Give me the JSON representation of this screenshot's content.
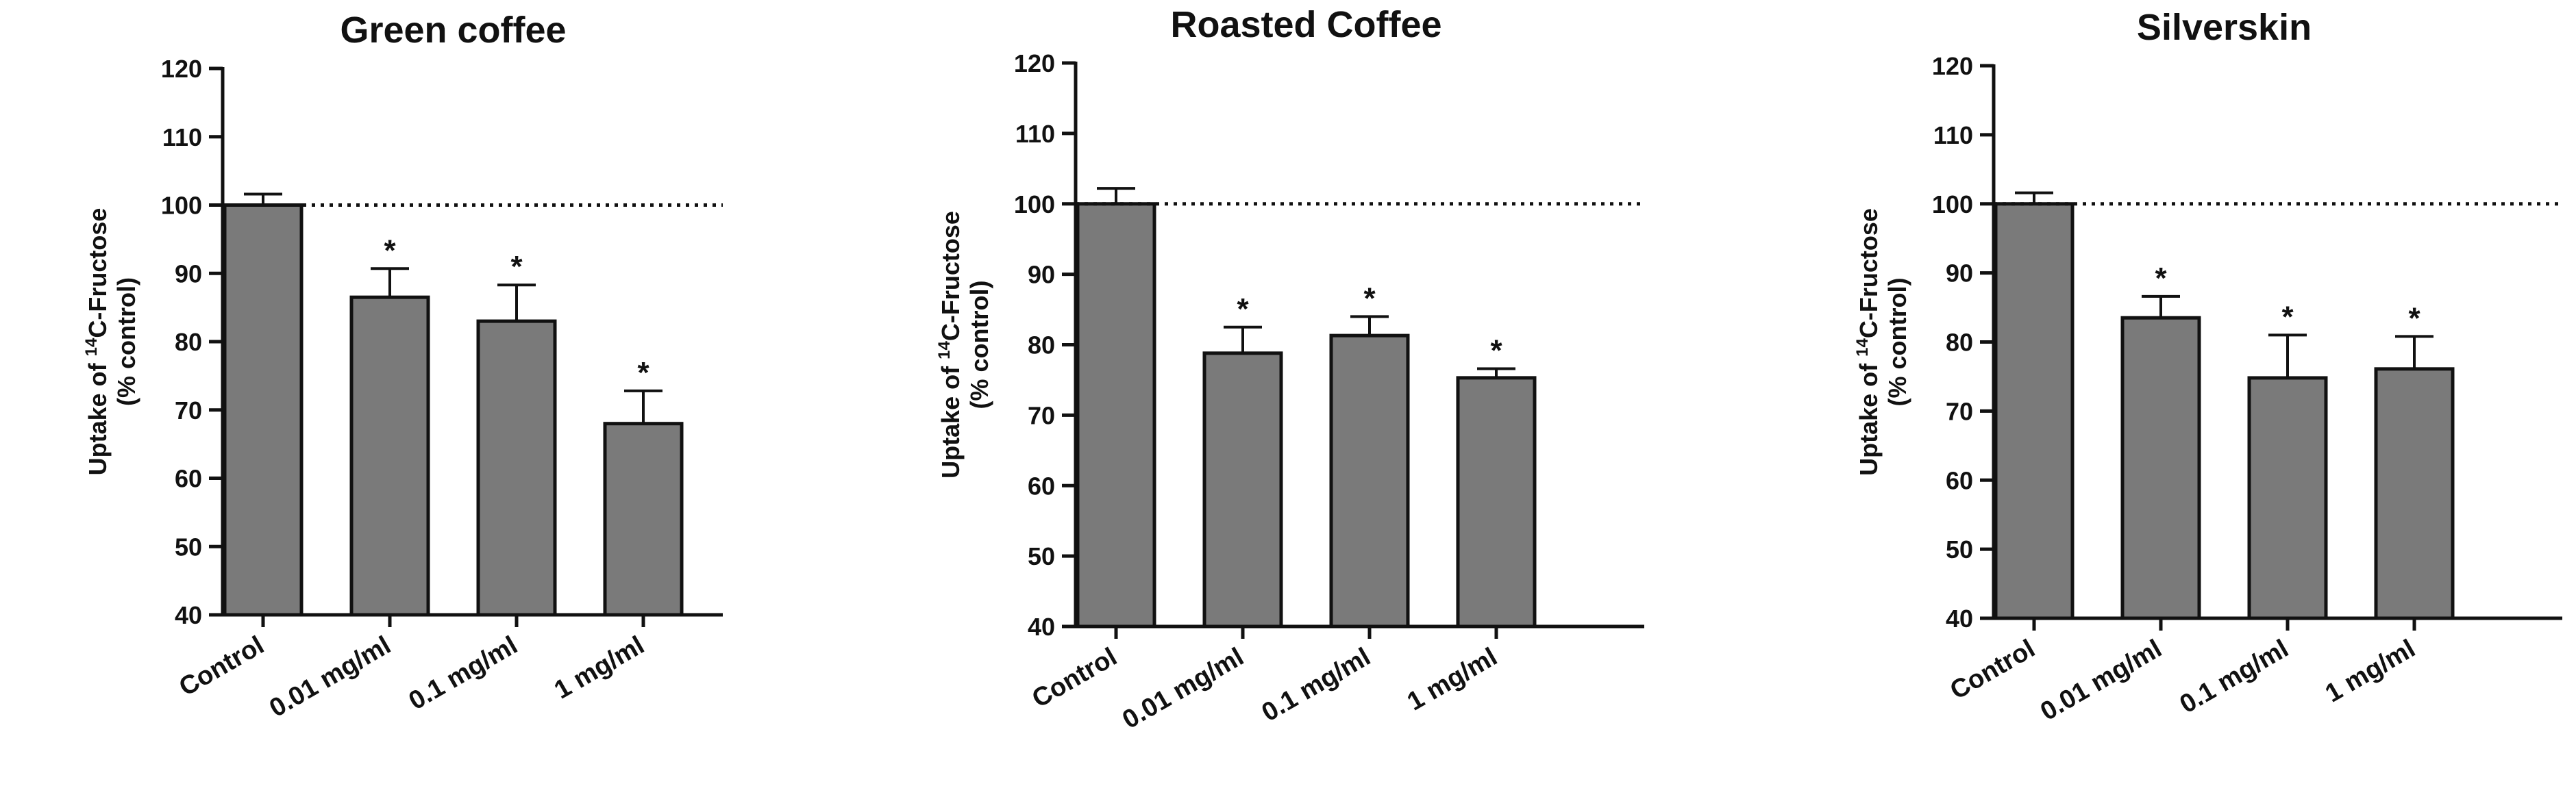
{
  "colors": {
    "bar_fill": "#7a7a7a",
    "stroke": "#111111",
    "background": "#ffffff"
  },
  "y_axis_label_parts": {
    "prefix": "Uptake of ",
    "superscript": "14",
    "suffix": "C-Fructose",
    "line2": "(% control)"
  },
  "chart_data": [
    {
      "type": "bar",
      "title": "Green coffee",
      "categories": [
        "Control",
        "0.01 mg/ml",
        "0.1 mg/ml",
        "1 mg/ml"
      ],
      "values": [
        100,
        86.5,
        83,
        68
      ],
      "error_upper": [
        101.6,
        90.7,
        88.3,
        72.8
      ],
      "significance": [
        "",
        "*",
        "*",
        "*"
      ],
      "ylabel": "Uptake of 14C-Fructose (% control)",
      "xlabel": "",
      "ylim": [
        40,
        120
      ],
      "yticks": [
        40,
        50,
        60,
        70,
        80,
        90,
        100,
        110,
        120
      ],
      "reference_line": 100,
      "grid": false,
      "legend": "none"
    },
    {
      "type": "bar",
      "title": "Roasted Coffee",
      "categories": [
        "Control",
        "0.01 mg/ml",
        "0.1 mg/ml",
        "1 mg/ml"
      ],
      "values": [
        100,
        78.8,
        81.3,
        75.3
      ],
      "error_upper": [
        102.2,
        82.5,
        84,
        76.6
      ],
      "significance": [
        "",
        "*",
        "*",
        "*"
      ],
      "ylabel": "Uptake of 14C-Fructose (% control)",
      "xlabel": "",
      "ylim": [
        40,
        120
      ],
      "yticks": [
        40,
        50,
        60,
        70,
        80,
        90,
        100,
        110,
        120
      ],
      "reference_line": 100,
      "grid": false,
      "legend": "none"
    },
    {
      "type": "bar",
      "title": "Silverskin",
      "categories": [
        "Control",
        "0.01 mg/ml",
        "0.1 mg/ml",
        "1 mg/ml"
      ],
      "values": [
        100,
        83.5,
        74.8,
        76.1
      ],
      "error_upper": [
        101.6,
        86.6,
        81,
        80.8
      ],
      "significance": [
        "",
        "*",
        "*",
        "*"
      ],
      "ylabel": "Uptake of 14C-Fructose (% control)",
      "xlabel": "",
      "ylim": [
        40,
        120
      ],
      "yticks": [
        40,
        50,
        60,
        70,
        80,
        90,
        100,
        110,
        120
      ],
      "reference_line": 100,
      "grid": false,
      "legend": "none"
    }
  ]
}
